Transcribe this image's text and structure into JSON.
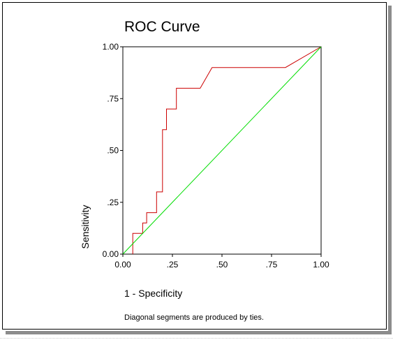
{
  "chart_data": {
    "type": "line",
    "title": "ROC Curve",
    "xlabel": "1 - Specificity",
    "ylabel": "Sensitivity",
    "xlim": [
      0,
      1
    ],
    "ylim": [
      0,
      1
    ],
    "x_ticks": [
      0,
      0.25,
      0.5,
      0.75,
      1
    ],
    "x_tick_labels": [
      "0.00",
      ".25",
      ".50",
      ".75",
      "1.00"
    ],
    "y_ticks": [
      0,
      0.25,
      0.5,
      0.75,
      1
    ],
    "y_tick_labels": [
      "0.00",
      ".25",
      ".50",
      ".75",
      "1.00"
    ],
    "grid": false,
    "footnote": "Diagonal segments are produced by ties.",
    "series": [
      {
        "color": "#cc0000",
        "x": [
          0.05,
          0.05,
          0.05,
          0.1,
          0.1,
          0.12,
          0.12,
          0.17,
          0.17,
          0.2,
          0.2,
          0.2,
          0.22,
          0.22,
          0.27,
          0.27,
          0.39,
          0.45,
          0.45,
          0.82,
          1.0
        ],
        "y": [
          0.0,
          0.05,
          0.1,
          0.1,
          0.15,
          0.15,
          0.2,
          0.2,
          0.3,
          0.3,
          0.5,
          0.6,
          0.6,
          0.7,
          0.7,
          0.8,
          0.8,
          0.9,
          0.9,
          0.9,
          1.0
        ]
      },
      {
        "color": "#00dd00",
        "x": [
          0,
          1
        ],
        "y": [
          0,
          1
        ]
      }
    ]
  }
}
